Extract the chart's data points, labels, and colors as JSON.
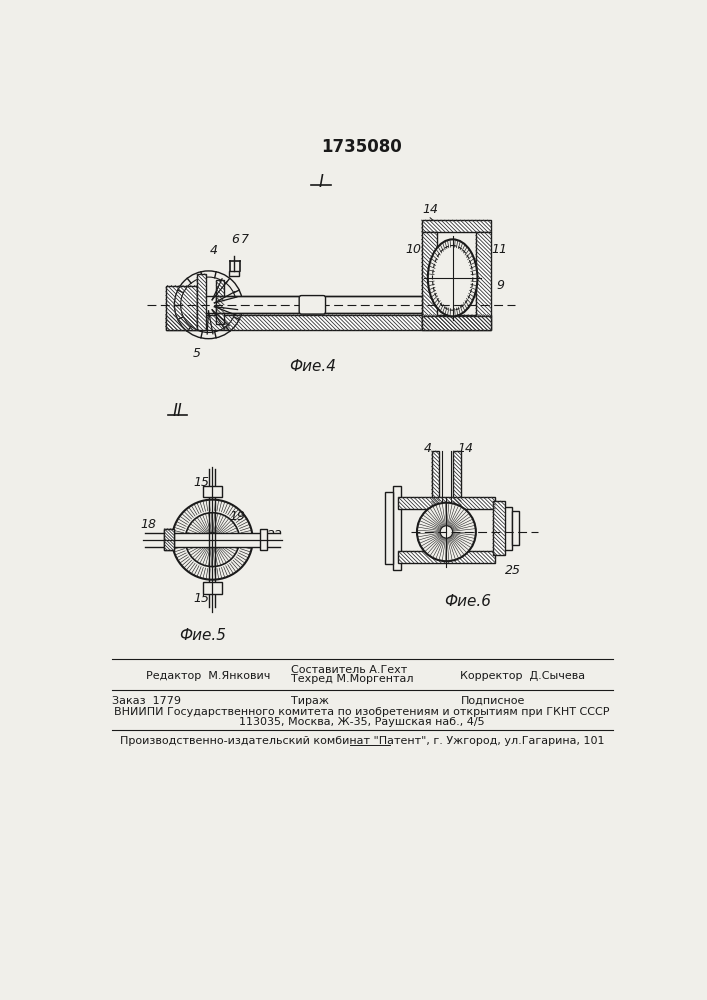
{
  "patent_number": "1735080",
  "fig4_label": "I",
  "fig5_label": "II",
  "fig4_caption": "Фие.4",
  "fig5_caption": "Фие.5",
  "fig6_caption": "Фие.6",
  "footer_line1_left": "Редактор  М.Янкович",
  "footer_col2_row1": "Составитель А.Гехт",
  "footer_col2_row2": "Техред М.Моргентал",
  "footer_line1_right": "Корректор  Д.Сычева",
  "footer_line2_left": "Заказ  1779",
  "footer_line2_mid": "Тираж",
  "footer_line2_right": "Подписное",
  "footer_line3": "ВНИИПИ Государственного комитета по изобретениям и открытиям при ГКНТ СССР",
  "footer_line4": "113035, Москва, Ж-35, Раушская наб., 4/5",
  "footer_line5": "Производственно-издательский комбинат \"Патент\", г. Ужгород, ул.Гагарина, 101",
  "bg_color": "#f0efea",
  "line_color": "#1a1a1a"
}
